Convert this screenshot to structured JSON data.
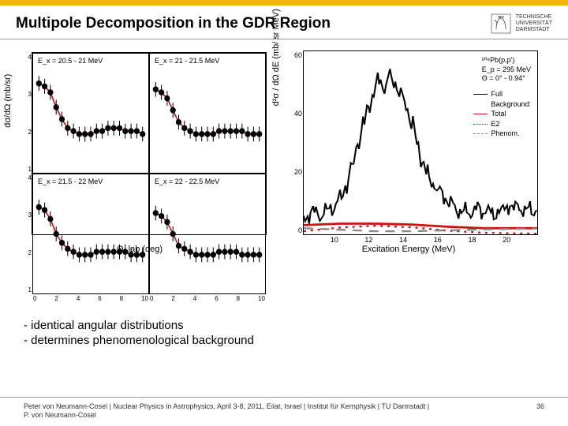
{
  "title": "Multipole Decomposition in the GDR Region",
  "logo": {
    "line1": "TECHNISCHE",
    "line2": "UNIVERSITÄT",
    "line3": "DARMSTADT"
  },
  "left_chart": {
    "y_label": "dσ/dΩ (mb/sr)",
    "x_label": "Θ_lab (deg)",
    "x_ticks": [
      "0",
      "2",
      "4",
      "6",
      "8",
      "10"
    ],
    "y_ticks": [
      "4",
      "3",
      "2",
      "1"
    ],
    "panels": [
      {
        "label": "E_x = 20.5 - 21 MeV",
        "x": [
          0.5,
          1,
          1.5,
          2,
          2.5,
          3,
          3.5,
          4,
          4.5,
          5,
          5.5,
          6,
          6.5,
          7,
          7.5,
          8,
          8.5,
          9,
          9.5
        ],
        "y": [
          3.5,
          3.4,
          3.2,
          2.7,
          2.3,
          2.0,
          1.9,
          1.8,
          1.8,
          1.8,
          1.9,
          1.9,
          2.0,
          2.0,
          2.0,
          1.9,
          1.9,
          1.9,
          1.8
        ],
        "err": 0.25,
        "fit_color": "#c22020"
      },
      {
        "label": "E_x = 21 - 21.5 MeV",
        "x": [
          0.5,
          1,
          1.5,
          2,
          2.5,
          3,
          3.5,
          4,
          4.5,
          5,
          5.5,
          6,
          6.5,
          7,
          7.5,
          8,
          8.5,
          9,
          9.5
        ],
        "y": [
          3.3,
          3.2,
          3.0,
          2.6,
          2.2,
          2.0,
          1.9,
          1.8,
          1.8,
          1.8,
          1.8,
          1.9,
          1.9,
          1.9,
          1.9,
          1.9,
          1.8,
          1.8,
          1.8
        ],
        "err": 0.25,
        "fit_color": "#c22020"
      },
      {
        "label": "E_x = 21.5 - 22 MeV",
        "x": [
          0.5,
          1,
          1.5,
          2,
          2.5,
          3,
          3.5,
          4,
          4.5,
          5,
          5.5,
          6,
          6.5,
          7,
          7.5,
          8,
          8.5,
          9,
          9.5
        ],
        "y": [
          3.4,
          3.3,
          3.0,
          2.5,
          2.2,
          2.0,
          1.9,
          1.8,
          1.8,
          1.8,
          1.9,
          1.9,
          1.9,
          1.9,
          1.9,
          1.9,
          1.8,
          1.8,
          1.8
        ],
        "err": 0.25,
        "fit_color": "#c22020"
      },
      {
        "label": "E_x = 22 - 22.5 MeV",
        "x": [
          0.5,
          1,
          1.5,
          2,
          2.5,
          3,
          3.5,
          4,
          4.5,
          5,
          5.5,
          6,
          6.5,
          7,
          7.5,
          8,
          8.5,
          9,
          9.5
        ],
        "y": [
          3.2,
          3.1,
          2.9,
          2.5,
          2.1,
          2.0,
          1.9,
          1.8,
          1.8,
          1.8,
          1.8,
          1.9,
          1.9,
          1.9,
          1.9,
          1.8,
          1.8,
          1.8,
          1.8
        ],
        "err": 0.25,
        "fit_color": "#c22020"
      }
    ],
    "xlim": [
      0,
      10
    ],
    "ylim": [
      0.5,
      4.5
    ],
    "marker_color": "#000000",
    "marker_size": 2.5
  },
  "right_chart": {
    "y_label": "d²σ / dΩ dE (mb/ sr MeV)",
    "x_label": "Excitation Energy (MeV)",
    "x_ticks": [
      "10",
      "12",
      "14",
      "16",
      "18",
      "20"
    ],
    "y_ticks": [
      "60",
      "40",
      "20",
      "0"
    ],
    "xlim": [
      8,
      21
    ],
    "ylim": [
      0,
      60
    ],
    "annot1": "²⁰⁸Pb(p,p')",
    "annot2": "E_p = 295 MeV",
    "annot3": "Θ = 0° - 0.94°",
    "legend": [
      {
        "label": "Full",
        "color": "#000000",
        "style": "solid"
      },
      {
        "label": "Background:",
        "color": "transparent",
        "style": "none"
      },
      {
        "label": "Total",
        "color": "#d01010",
        "style": "solid"
      },
      {
        "label": "E2",
        "color": "#d01010",
        "style": "dotted"
      },
      {
        "label": "Phenom.",
        "color": "#888888",
        "style": "dashed"
      }
    ],
    "full_spectrum": {
      "x": [
        8,
        8.3,
        8.6,
        8.9,
        9.2,
        9.5,
        9.8,
        10.1,
        10.4,
        10.7,
        11,
        11.3,
        11.6,
        11.9,
        12.2,
        12.5,
        12.8,
        13.1,
        13.4,
        13.7,
        14,
        14.3,
        14.6,
        14.9,
        15.2,
        15.5,
        15.8,
        16.1,
        16.4,
        16.7,
        17,
        17.3,
        17.6,
        17.9,
        18.2,
        18.5,
        18.8,
        19.1,
        19.4,
        19.7,
        20,
        20.3,
        20.6,
        20.9
      ],
      "y": [
        5,
        6,
        7,
        6,
        8,
        9,
        10,
        12,
        16,
        22,
        30,
        36,
        42,
        46,
        50,
        48,
        52,
        50,
        46,
        42,
        36,
        30,
        24,
        20,
        17,
        14,
        12,
        10,
        9,
        8,
        8,
        7,
        8,
        7,
        8,
        7,
        8,
        8,
        9,
        8,
        9,
        8,
        9,
        8
      ],
      "noise": 3,
      "color": "#000000"
    },
    "bg_total": {
      "x": [
        8,
        10,
        12,
        14,
        16,
        18,
        20,
        21
      ],
      "y": [
        3,
        3.5,
        3.5,
        3.2,
        2.5,
        2,
        2,
        2
      ],
      "color": "#d01010",
      "style": "solid"
    },
    "bg_e2": {
      "x": [
        8,
        10,
        12,
        14,
        16,
        18,
        20,
        21
      ],
      "y": [
        1,
        2.2,
        2.8,
        2.3,
        1.2,
        0.5,
        0.3,
        0.2
      ],
      "color": "#d01010",
      "style": "dotted"
    },
    "bg_phenom": {
      "x": [
        8,
        10,
        12,
        14,
        16,
        18,
        20,
        21
      ],
      "y": [
        2,
        1.5,
        1,
        1,
        1.3,
        1.6,
        1.8,
        1.9
      ],
      "color": "#888888",
      "style": "dashed"
    }
  },
  "bullets": {
    "b1": "identical angular distributions",
    "b2": "determines phenomenological background"
  },
  "footer": {
    "left": "Peter von Neumann-Cosel | Nuclear Physics in Astrophysics, April 3-8, 2011, Eilat, Israel | Institut für Kernphysik | TU Darmstadt | P. von Neumann-Cosel",
    "page": "36"
  }
}
